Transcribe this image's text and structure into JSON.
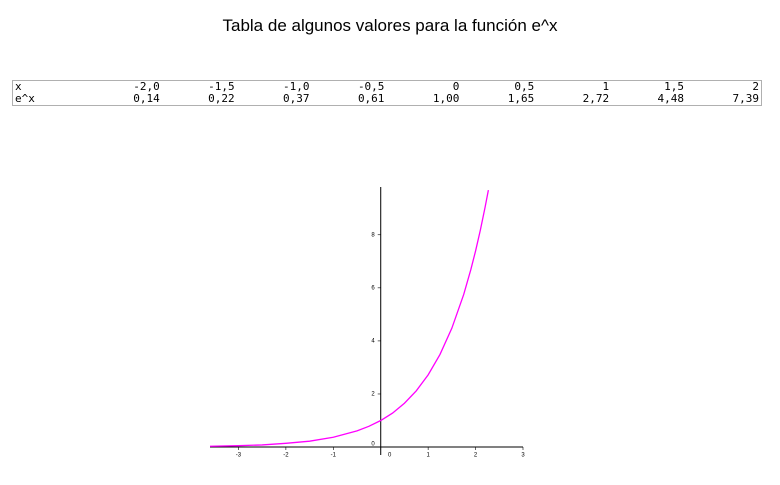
{
  "title": "Tabla de algunos valores para la función e^x",
  "table": {
    "rows": [
      [
        "x",
        "-2,0",
        "-1,5",
        "-1,0",
        "-0,5",
        "0",
        "0,5",
        "1",
        "1,5",
        "2"
      ],
      [
        "e^x",
        "0,14",
        "0,22",
        "0,37",
        "0,61",
        "1,00",
        "1,65",
        "2,72",
        "4,48",
        "7,39"
      ]
    ]
  },
  "chart_data": {
    "type": "line",
    "color": "#ff00ff",
    "x": [
      -3.6,
      -3,
      -2.5,
      -2,
      -1.5,
      -1,
      -0.5,
      -0.25,
      0,
      0.25,
      0.5,
      0.75,
      1,
      1.25,
      1.5,
      1.75,
      1.9,
      2,
      2.1,
      2.2,
      2.27
    ],
    "values": [
      0.03,
      0.05,
      0.08,
      0.14,
      0.22,
      0.37,
      0.61,
      0.78,
      1.0,
      1.28,
      1.65,
      2.12,
      2.72,
      3.49,
      4.48,
      5.75,
      6.69,
      7.39,
      8.17,
      9.03,
      9.68
    ],
    "xlim": [
      -3.6,
      3
    ],
    "ylim": [
      -0.3,
      9.8
    ],
    "xticks": [
      -3,
      -2,
      -1,
      0,
      1,
      2,
      3
    ],
    "yticks": [
      0,
      2,
      4,
      6,
      8
    ]
  }
}
